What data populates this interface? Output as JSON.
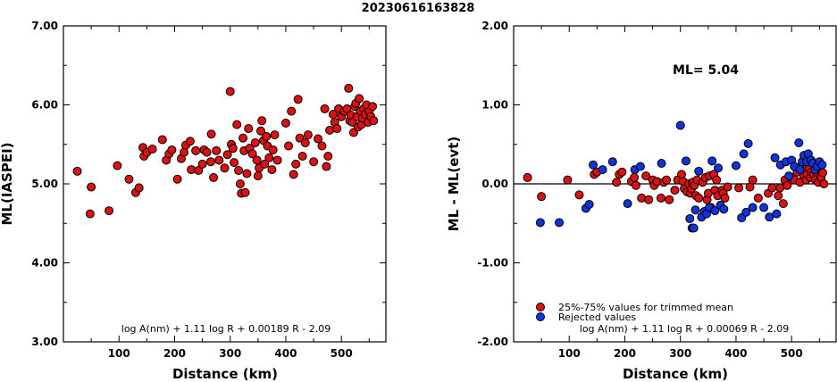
{
  "title": "20230616163828",
  "chart_data": [
    {
      "type": "scatter",
      "xlabel": "Distance (km)",
      "ylabel": "ML(IASPEI)",
      "xlim": [
        0,
        580
      ],
      "ylim": [
        3.0,
        7.0
      ],
      "xticks": [
        "100",
        "200",
        "300",
        "400",
        "500"
      ],
      "xtick_values": [
        100,
        200,
        300,
        400,
        500
      ],
      "yticks": [
        "3.00",
        "4.00",
        "5.00",
        "6.00",
        "7.00"
      ],
      "ytick_values": [
        3,
        4,
        5,
        6,
        7
      ],
      "formula": "log A(nm) + 1.11 log R + 0.00189 R - 2.09",
      "marker_color": "#dd1111",
      "points": [
        [
          25,
          5.16
        ],
        [
          48,
          4.62
        ],
        [
          50,
          4.96
        ],
        [
          82,
          4.66
        ],
        [
          97,
          5.23
        ],
        [
          118,
          5.06
        ],
        [
          130,
          4.89
        ],
        [
          136,
          4.95
        ],
        [
          143,
          5.46
        ],
        [
          145,
          5.35
        ],
        [
          150,
          5.4
        ],
        [
          160,
          5.44
        ],
        [
          178,
          5.56
        ],
        [
          185,
          5.3
        ],
        [
          190,
          5.38
        ],
        [
          195,
          5.43
        ],
        [
          205,
          5.06
        ],
        [
          212,
          5.32
        ],
        [
          217,
          5.4
        ],
        [
          220,
          5.49
        ],
        [
          228,
          5.54
        ],
        [
          230,
          5.18
        ],
        [
          238,
          5.42
        ],
        [
          243,
          5.17
        ],
        [
          250,
          5.25
        ],
        [
          253,
          5.43
        ],
        [
          258,
          5.4
        ],
        [
          265,
          5.28
        ],
        [
          266,
          5.63
        ],
        [
          270,
          5.08
        ],
        [
          275,
          5.42
        ],
        [
          280,
          5.3
        ],
        [
          290,
          5.2
        ],
        [
          295,
          5.37
        ],
        [
          300,
          6.17
        ],
        [
          302,
          5.5
        ],
        [
          305,
          5.45
        ],
        [
          307,
          5.27
        ],
        [
          312,
          5.75
        ],
        [
          315,
          5.17
        ],
        [
          318,
          5.0
        ],
        [
          320,
          4.88
        ],
        [
          323,
          5.58
        ],
        [
          325,
          5.42
        ],
        [
          327,
          4.89
        ],
        [
          330,
          5.13
        ],
        [
          333,
          5.7
        ],
        [
          335,
          5.45
        ],
        [
          340,
          5.38
        ],
        [
          345,
          5.52
        ],
        [
          348,
          5.3
        ],
        [
          350,
          5.1
        ],
        [
          352,
          5.2
        ],
        [
          355,
          5.67
        ],
        [
          357,
          5.8
        ],
        [
          360,
          5.55
        ],
        [
          362,
          5.25
        ],
        [
          365,
          5.6
        ],
        [
          367,
          5.48
        ],
        [
          370,
          5.33
        ],
        [
          375,
          5.18
        ],
        [
          377,
          5.43
        ],
        [
          380,
          5.62
        ],
        [
          385,
          5.3
        ],
        [
          400,
          5.77
        ],
        [
          405,
          5.48
        ],
        [
          410,
          5.92
        ],
        [
          414,
          5.12
        ],
        [
          418,
          5.25
        ],
        [
          422,
          6.07
        ],
        [
          425,
          5.58
        ],
        [
          430,
          5.35
        ],
        [
          435,
          5.52
        ],
        [
          440,
          5.62
        ],
        [
          450,
          5.28
        ],
        [
          458,
          5.57
        ],
        [
          465,
          5.48
        ],
        [
          470,
          5.95
        ],
        [
          473,
          5.22
        ],
        [
          476,
          5.35
        ],
        [
          479,
          5.68
        ],
        [
          485,
          5.88
        ],
        [
          488,
          5.78
        ],
        [
          492,
          5.7
        ],
        [
          495,
          5.95
        ],
        [
          500,
          5.85
        ],
        [
          505,
          5.92
        ],
        [
          510,
          5.95
        ],
        [
          513,
          6.21
        ],
        [
          515,
          5.8
        ],
        [
          517,
          5.87
        ],
        [
          520,
          5.78
        ],
        [
          522,
          5.65
        ],
        [
          524,
          5.98
        ],
        [
          526,
          6.02
        ],
        [
          528,
          5.85
        ],
        [
          530,
          5.72
        ],
        [
          532,
          6.08
        ],
        [
          534,
          5.92
        ],
        [
          536,
          5.75
        ],
        [
          538,
          5.83
        ],
        [
          540,
          5.95
        ],
        [
          543,
          5.88
        ],
        [
          545,
          6.0
        ],
        [
          548,
          5.78
        ],
        [
          550,
          5.92
        ],
        [
          553,
          5.85
        ],
        [
          556,
          5.98
        ],
        [
          558,
          5.8
        ]
      ]
    },
    {
      "type": "scatter",
      "xlabel": "Distance (km)",
      "ylabel": "ML - ML(evt)",
      "xlim": [
        0,
        580
      ],
      "ylim": [
        -2.0,
        2.0
      ],
      "xticks": [
        "100",
        "200",
        "300",
        "400",
        "500"
      ],
      "xtick_values": [
        100,
        200,
        300,
        400,
        500
      ],
      "yticks": [
        "-2.00",
        "-1.00",
        "0.00",
        "1.00",
        "2.00"
      ],
      "ytick_values": [
        -2,
        -1,
        0,
        1,
        2
      ],
      "ml_label": "ML= 5.04",
      "reference_line": 0,
      "formula": "log A(nm) + 1.11 log R + 0.00069 R - 2.09",
      "legend": [
        {
          "label": "25%-75% values for trimmed mean",
          "color": "#dd1111"
        },
        {
          "label": "Rejected values",
          "color": "#1133dd"
        }
      ],
      "series": [
        {
          "name": "25%-75% values for trimmed mean",
          "color": "#dd1111",
          "points": [
            [
              25,
              0.08
            ],
            [
              50,
              -0.16
            ],
            [
              97,
              0.05
            ],
            [
              118,
              -0.14
            ],
            [
              145,
              0.12
            ],
            [
              150,
              0.15
            ],
            [
              185,
              0.02
            ],
            [
              190,
              0.12
            ],
            [
              195,
              0.15
            ],
            [
              212,
              0.03
            ],
            [
              217,
              0.08
            ],
            [
              220,
              -0.02
            ],
            [
              230,
              -0.18
            ],
            [
              238,
              0.1
            ],
            [
              243,
              -0.2
            ],
            [
              250,
              0.05
            ],
            [
              253,
              -0.02
            ],
            [
              258,
              0.03
            ],
            [
              265,
              -0.18
            ],
            [
              270,
              0.02
            ],
            [
              275,
              0.05
            ],
            [
              280,
              -0.2
            ],
            [
              290,
              -0.08
            ],
            [
              295,
              0.05
            ],
            [
              302,
              0.12
            ],
            [
              305,
              0.03
            ],
            [
              307,
              -0.06
            ],
            [
              312,
              -0.1
            ],
            [
              315,
              0.0
            ],
            [
              318,
              -0.12
            ],
            [
              320,
              -0.06
            ],
            [
              322,
              0.02
            ],
            [
              325,
              -0.02
            ],
            [
              328,
              -0.15
            ],
            [
              330,
              0.05
            ],
            [
              333,
              -0.18
            ],
            [
              340,
              0.02
            ],
            [
              345,
              0.08
            ],
            [
              348,
              -0.2
            ],
            [
              350,
              -0.12
            ],
            [
              352,
              0.1
            ],
            [
              355,
              -0.3
            ],
            [
              360,
              0.12
            ],
            [
              362,
              -0.08
            ],
            [
              365,
              0.05
            ],
            [
              367,
              -0.15
            ],
            [
              375,
              -0.08
            ],
            [
              377,
              -0.12
            ],
            [
              380,
              -0.18
            ],
            [
              385,
              -0.04
            ],
            [
              405,
              -0.05
            ],
            [
              425,
              -0.04
            ],
            [
              430,
              0.05
            ],
            [
              440,
              -0.18
            ],
            [
              458,
              -0.12
            ],
            [
              465,
              -0.05
            ],
            [
              476,
              -0.15
            ],
            [
              479,
              -0.05
            ],
            [
              485,
              -0.25
            ],
            [
              488,
              0.05
            ],
            [
              492,
              -0.02
            ],
            [
              500,
              0.08
            ],
            [
              505,
              0.05
            ],
            [
              510,
              0.15
            ],
            [
              515,
              0.02
            ],
            [
              517,
              0.22
            ],
            [
              520,
              0.25
            ],
            [
              522,
              0.1
            ],
            [
              524,
              0.18
            ],
            [
              526,
              0.05
            ],
            [
              528,
              0.12
            ],
            [
              532,
              0.2
            ],
            [
              534,
              0.08
            ],
            [
              536,
              0.15
            ],
            [
              540,
              0.12
            ],
            [
              543,
              0.05
            ],
            [
              545,
              0.15
            ],
            [
              548,
              0.02
            ],
            [
              550,
              0.18
            ],
            [
              553,
              0.08
            ],
            [
              556,
              0.14
            ],
            [
              558,
              0.0
            ]
          ]
        },
        {
          "name": "Rejected values",
          "color": "#1133dd",
          "points": [
            [
              48,
              -0.49
            ],
            [
              82,
              -0.49
            ],
            [
              130,
              -0.31
            ],
            [
              136,
              -0.26
            ],
            [
              143,
              0.24
            ],
            [
              160,
              0.18
            ],
            [
              178,
              0.28
            ],
            [
              205,
              -0.25
            ],
            [
              218,
              0.18
            ],
            [
              228,
              0.22
            ],
            [
              266,
              0.26
            ],
            [
              300,
              0.74
            ],
            [
              310,
              0.29
            ],
            [
              317,
              -0.44
            ],
            [
              321,
              -0.56
            ],
            [
              324,
              -0.56
            ],
            [
              327,
              -0.33
            ],
            [
              333,
              0.16
            ],
            [
              338,
              -0.42
            ],
            [
              343,
              -0.35
            ],
            [
              347,
              -0.38
            ],
            [
              352,
              -0.3
            ],
            [
              357,
              0.29
            ],
            [
              362,
              -0.34
            ],
            [
              368,
              0.2
            ],
            [
              372,
              -0.27
            ],
            [
              378,
              -0.32
            ],
            [
              400,
              0.23
            ],
            [
              410,
              -0.43
            ],
            [
              414,
              0.38
            ],
            [
              418,
              -0.36
            ],
            [
              422,
              0.51
            ],
            [
              430,
              -0.3
            ],
            [
              450,
              -0.3
            ],
            [
              460,
              -0.42
            ],
            [
              470,
              0.33
            ],
            [
              473,
              -0.38
            ],
            [
              480,
              0.24
            ],
            [
              490,
              0.28
            ],
            [
              495,
              0.1
            ],
            [
              500,
              0.3
            ],
            [
              505,
              0.22
            ],
            [
              513,
              0.52
            ],
            [
              515,
              0.18
            ],
            [
              519,
              0.28
            ],
            [
              522,
              0.36
            ],
            [
              527,
              0.28
            ],
            [
              530,
              0.38
            ],
            [
              535,
              0.3
            ],
            [
              538,
              0.26
            ],
            [
              542,
              0.18
            ],
            [
              546,
              0.22
            ],
            [
              550,
              0.28
            ],
            [
              555,
              0.24
            ]
          ]
        }
      ]
    }
  ]
}
